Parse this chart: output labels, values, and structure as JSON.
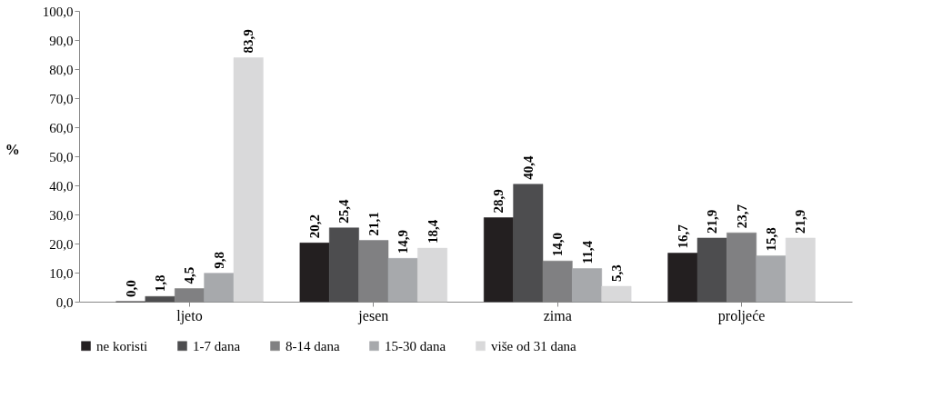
{
  "chart_data": {
    "type": "bar",
    "ylabel": "%",
    "categories": [
      "ljeto",
      "jesen",
      "zima",
      "proljeće"
    ],
    "series": [
      {
        "name": "ne koristi",
        "color": "#231f20",
        "values": [
          0.0,
          20.2,
          28.9,
          16.7
        ],
        "value_labels": [
          "0,0",
          "20,2",
          "28,9",
          "16,7"
        ]
      },
      {
        "name": "1-7 dana",
        "color": "#4d4d4f",
        "values": [
          1.8,
          25.4,
          40.4,
          21.9
        ],
        "value_labels": [
          "1,8",
          "25,4",
          "40,4",
          "21,9"
        ]
      },
      {
        "name": "8-14 dana",
        "color": "#808082",
        "values": [
          4.5,
          21.1,
          14.0,
          23.7
        ],
        "value_labels": [
          "4,5",
          "21,1",
          "14,0",
          "23,7"
        ]
      },
      {
        "name": "15-30 dana",
        "color": "#a7a9ac",
        "values": [
          9.8,
          14.9,
          11.4,
          15.8
        ],
        "value_labels": [
          "9,8",
          "14,9",
          "11,4",
          "15,8"
        ]
      },
      {
        "name": "više od 31 dana",
        "color": "#d9d9da",
        "values": [
          83.9,
          18.4,
          5.3,
          21.9
        ],
        "value_labels": [
          "83,9",
          "18,4",
          "5,3",
          "21,9"
        ]
      }
    ],
    "ylim": [
      0,
      100
    ],
    "yticks": [
      {
        "value": 0,
        "label": "0,0"
      },
      {
        "value": 10,
        "label": "10,0"
      },
      {
        "value": 20,
        "label": "20,0"
      },
      {
        "value": 30,
        "label": "30,0"
      },
      {
        "value": 40,
        "label": "40,0"
      },
      {
        "value": 50,
        "label": "50,0"
      },
      {
        "value": 60,
        "label": "60,0"
      },
      {
        "value": 70,
        "label": "70,0"
      },
      {
        "value": 80,
        "label": "80,0"
      },
      {
        "value": 90,
        "label": "90,0"
      },
      {
        "value": 100,
        "label": "100,0"
      }
    ],
    "grid": false,
    "legend": "bottom"
  }
}
